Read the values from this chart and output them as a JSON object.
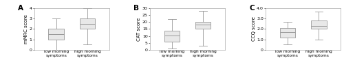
{
  "panels": [
    {
      "label": "A",
      "ylabel": "mMRC score",
      "ylim": [
        0,
        4
      ],
      "yticks": [
        0,
        1,
        2,
        3,
        4
      ],
      "groups": [
        "low morning\nsymptoms",
        "high morning\nsymptoms"
      ],
      "boxes": [
        {
          "whislo": 0.0,
          "q1": 1.0,
          "med": 1.5,
          "q3": 2.0,
          "whishi": 3.0
        },
        {
          "whislo": 0.5,
          "q1": 2.0,
          "med": 2.5,
          "q3": 3.0,
          "whishi": 4.0
        }
      ]
    },
    {
      "label": "B",
      "ylabel": "CAT score",
      "ylim": [
        0,
        30
      ],
      "yticks": [
        0,
        5,
        10,
        15,
        20,
        25,
        30
      ],
      "groups": [
        "low morning\nsymptoms",
        "high morning\nsymptoms"
      ],
      "boxes": [
        {
          "whislo": 1.0,
          "q1": 6.0,
          "med": 10.5,
          "q3": 13.5,
          "whishi": 22.0
        },
        {
          "whislo": 3.0,
          "q1": 15.0,
          "med": 18.0,
          "q3": 20.0,
          "whishi": 28.0
        }
      ]
    },
    {
      "label": "C",
      "ylabel": "CCQ score",
      "ylim": [
        0,
        4.0
      ],
      "yticks": [
        0,
        1.0,
        2.0,
        3.0,
        4.0
      ],
      "ytick_labels": [
        "0",
        "1.0",
        "2.0",
        "3.0",
        "4.0"
      ],
      "groups": [
        "low morning\nsymptoms",
        "high morning\nsymptoms"
      ],
      "boxes": [
        {
          "whislo": 0.5,
          "q1": 1.2,
          "med": 1.7,
          "q3": 2.1,
          "whishi": 2.7
        },
        {
          "whislo": 1.0,
          "q1": 2.0,
          "med": 2.3,
          "q3": 2.8,
          "whishi": 3.7
        }
      ]
    }
  ],
  "box_facecolor": "#e8e8e8",
  "box_edgecolor": "#999999",
  "median_color": "#999999",
  "whisker_color": "#999999",
  "cap_color": "#999999",
  "spine_color": "#aaaaaa",
  "label_fontsize": 4.2,
  "tick_fontsize": 4.5,
  "ylabel_fontsize": 5.0,
  "panel_label_fontsize": 7.5,
  "background_color": "#ffffff"
}
